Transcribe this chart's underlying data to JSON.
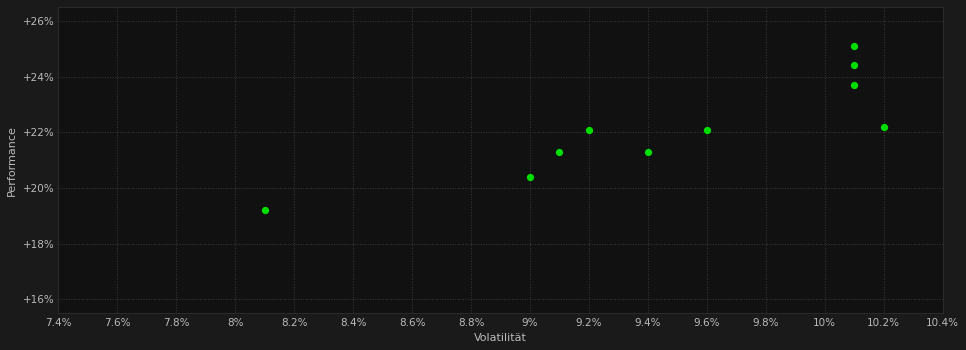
{
  "xlabel": "Volatilität",
  "ylabel": "Performance",
  "background_color": "#1a1a1a",
  "plot_bg_color": "#111111",
  "grid_color": "#3a3a3a",
  "text_color": "#bbbbbb",
  "dot_color": "#00dd00",
  "dot_size": 18,
  "points": [
    [
      0.081,
      0.192
    ],
    [
      0.09,
      0.204
    ],
    [
      0.091,
      0.213
    ],
    [
      0.092,
      0.221
    ],
    [
      0.094,
      0.213
    ],
    [
      0.096,
      0.221
    ],
    [
      0.101,
      0.237
    ],
    [
      0.101,
      0.244
    ],
    [
      0.101,
      0.251
    ],
    [
      0.102,
      0.222
    ]
  ],
  "xlim": [
    0.074,
    0.104
  ],
  "ylim": [
    0.155,
    0.265
  ],
  "xtick_values": [
    0.074,
    0.076,
    0.078,
    0.08,
    0.082,
    0.084,
    0.086,
    0.088,
    0.09,
    0.092,
    0.094,
    0.096,
    0.098,
    0.1,
    0.102,
    0.104
  ],
  "ytick_values": [
    0.16,
    0.18,
    0.2,
    0.22,
    0.24,
    0.26
  ]
}
